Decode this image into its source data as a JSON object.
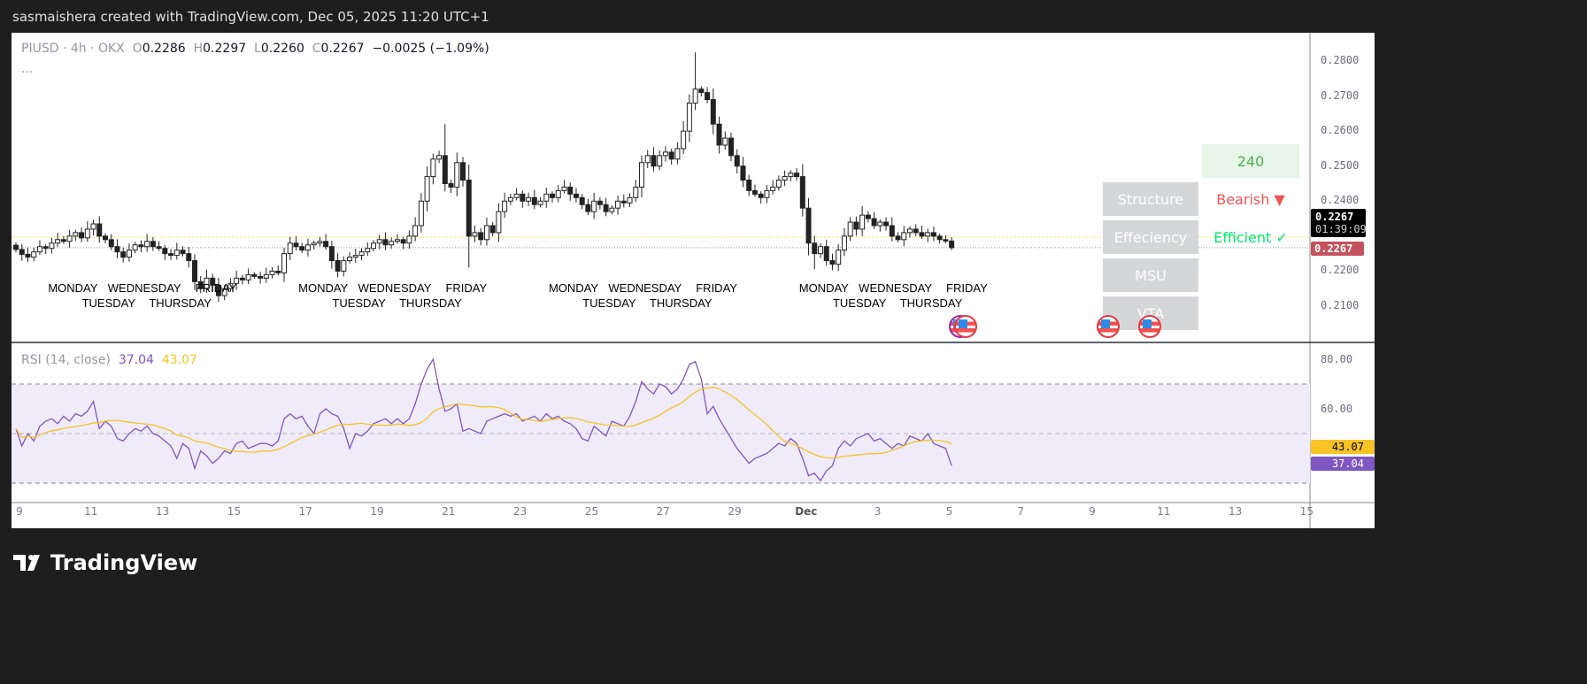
{
  "header": {
    "attribution": "sasmaishera created with TradingView.com, Dec 05, 2025 11:20 UTC+1"
  },
  "legend": {
    "symbol": "PIUSD · 4h · OKX",
    "o_label": "O",
    "o": "0.2286",
    "h_label": "H",
    "h": "0.2297",
    "l_label": "L",
    "l": "0.2260",
    "c_label": "C",
    "c": "0.2267",
    "change": "−0.0025 (−1.09%)",
    "more": "..."
  },
  "price_scale": {
    "ticks": [
      "0.2800",
      "0.2700",
      "0.2600",
      "0.2500",
      "0.2400",
      "0.2200",
      "0.2100"
    ],
    "last_price": "0.2267",
    "countdown": "01:39:09",
    "current_price": "0.2267"
  },
  "rsi": {
    "label": "RSI (14, close)",
    "value": "37.04",
    "ma_value": "43.07",
    "ticks": [
      "80.00",
      "60.00"
    ],
    "color": "#7e57c2",
    "ma_color": "#f7c325",
    "band_upper": 70,
    "band_lower": 30
  },
  "time_axis": {
    "labels": [
      "9",
      "11",
      "13",
      "15",
      "17",
      "19",
      "21",
      "23",
      "25",
      "27",
      "29",
      "Dec",
      "3",
      "5",
      "7",
      "9",
      "11",
      "13",
      "15"
    ]
  },
  "weekday_labels": [
    "MONDAY",
    "TUESDAY",
    "WEDNESDAY",
    "THURSDAY",
    "FRIDAY"
  ],
  "table": {
    "timeframe": "240",
    "rows": [
      {
        "label": "Structure",
        "value": "Bearish ▼",
        "color": "#f05454"
      },
      {
        "label": "Effeciency",
        "value": "Efficient ✓",
        "color": "#00e676"
      },
      {
        "label": "MSU",
        "value": ""
      },
      {
        "label": "VTA",
        "value": ""
      }
    ]
  },
  "events": [
    "us-flag-icon",
    "us-flag-icon",
    "us-flag-icon",
    "us-flag-icon"
  ],
  "footer": {
    "logo": "TradingView"
  },
  "chart_data": {
    "type": "candlestick",
    "interval": "4h",
    "symbol": "PIUSD",
    "x_start": "2025-11-09",
    "ylim": [
      0.205,
      0.2835
    ],
    "last_candle": {
      "open": 0.2286,
      "high": 0.2297,
      "low": 0.226,
      "close": 0.2267
    },
    "close": [
      0.2262,
      0.2248,
      0.224,
      0.2255,
      0.227,
      0.2265,
      0.228,
      0.229,
      0.2285,
      0.23,
      0.231,
      0.2295,
      0.232,
      0.2335,
      0.23,
      0.229,
      0.227,
      0.2255,
      0.224,
      0.226,
      0.2275,
      0.227,
      0.2285,
      0.227,
      0.2265,
      0.225,
      0.2245,
      0.226,
      0.225,
      0.223,
      0.217,
      0.215,
      0.218,
      0.216,
      0.213,
      0.215,
      0.2165,
      0.218,
      0.2175,
      0.219,
      0.2185,
      0.218,
      0.219,
      0.22,
      0.2195,
      0.225,
      0.228,
      0.227,
      0.226,
      0.2275,
      0.228,
      0.2285,
      0.227,
      0.223,
      0.22,
      0.223,
      0.224,
      0.2245,
      0.2255,
      0.2265,
      0.228,
      0.229,
      0.2275,
      0.2285,
      0.229,
      0.228,
      0.23,
      0.233,
      0.24,
      0.247,
      0.252,
      0.253,
      0.245,
      0.244,
      0.251,
      0.246,
      0.23,
      0.231,
      0.229,
      0.233,
      0.231,
      0.237,
      0.24,
      0.241,
      0.242,
      0.24,
      0.241,
      0.239,
      0.24,
      0.242,
      0.241,
      0.243,
      0.244,
      0.242,
      0.241,
      0.239,
      0.237,
      0.24,
      0.239,
      0.237,
      0.238,
      0.24,
      0.2395,
      0.241,
      0.244,
      0.251,
      0.253,
      0.25,
      0.253,
      0.254,
      0.252,
      0.255,
      0.26,
      0.268,
      0.272,
      0.271,
      0.269,
      0.262,
      0.256,
      0.258,
      0.253,
      0.25,
      0.246,
      0.243,
      0.242,
      0.241,
      0.243,
      0.244,
      0.246,
      0.247,
      0.248,
      0.247,
      0.238,
      0.228,
      0.225,
      0.227,
      0.223,
      0.222,
      0.226,
      0.23,
      0.234,
      0.232,
      0.236,
      0.235,
      0.233,
      0.234,
      0.233,
      0.23,
      0.229,
      0.231,
      0.232,
      0.231,
      0.23,
      0.231,
      0.23,
      0.229,
      0.2286,
      0.2267
    ],
    "rsi": [
      52,
      45,
      50,
      47,
      53,
      55,
      56,
      54,
      57,
      55,
      58,
      57,
      59,
      63,
      52,
      55,
      53,
      48,
      47,
      50,
      52,
      51,
      53,
      50,
      49,
      47,
      45,
      40,
      46,
      44,
      36,
      43,
      41,
      38,
      40,
      43,
      42,
      46,
      47,
      44,
      45,
      46,
      46,
      45,
      47,
      56,
      58,
      56,
      57,
      53,
      50,
      58,
      60,
      58,
      57,
      52,
      44,
      50,
      49,
      51,
      54,
      55,
      56,
      54,
      56,
      54,
      56,
      62,
      70,
      76,
      80,
      68,
      59,
      60,
      62,
      51,
      52,
      51,
      50,
      55,
      56,
      57,
      58,
      57,
      58,
      55,
      56,
      57,
      55,
      58,
      56,
      57,
      55,
      54,
      52,
      48,
      47,
      53,
      51,
      49,
      55,
      54,
      53,
      57,
      63,
      71,
      68,
      66,
      70,
      69,
      66,
      68,
      72,
      78,
      79,
      72,
      58,
      61,
      56,
      52,
      48,
      44,
      41,
      38,
      40,
      41,
      42,
      44,
      46,
      45,
      48,
      46,
      40,
      33,
      34,
      31,
      35,
      37,
      44,
      47,
      45,
      48,
      49,
      50,
      47,
      48,
      46,
      44,
      46,
      45,
      49,
      48,
      47,
      50,
      46,
      45,
      44,
      37.04
    ],
    "rsi_ylim": [
      20,
      85
    ]
  }
}
